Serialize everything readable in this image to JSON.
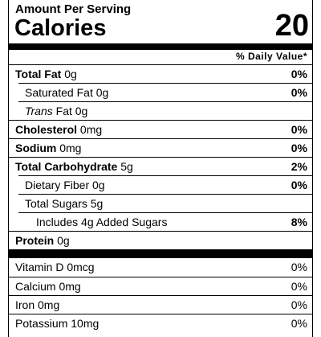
{
  "header": {
    "serving": "Amount Per Serving",
    "calories_label": "Calories",
    "calories_value": "20",
    "daily_value": "% Daily Value*"
  },
  "rows": [
    {
      "name": "Total Fat",
      "amount": "0g",
      "dv": "0%"
    },
    {
      "name": "Saturated Fat 0g",
      "dv": "0%"
    },
    {
      "prefix": "Trans",
      "name": "Fat 0g"
    },
    {
      "name": "Cholesterol",
      "amount": "0mg",
      "dv": "0%"
    },
    {
      "name": "Sodium",
      "amount": "0mg",
      "dv": "0%"
    },
    {
      "name": "Total Carbohydrate",
      "amount": "5g",
      "dv": "2%"
    },
    {
      "name": "Dietary Fiber 0g",
      "dv": "0%"
    },
    {
      "name": "Total Sugars 5g"
    },
    {
      "name": "Includes 4g Added Sugars",
      "dv": "8%"
    },
    {
      "name": "Protein",
      "amount": "0g"
    }
  ],
  "vitamins": [
    {
      "name": "Vitamin D 0mcg",
      "dv": "0%"
    },
    {
      "name": "Calcium 0mg",
      "dv": "0%"
    },
    {
      "name": "Iron 0mg",
      "dv": "0%"
    },
    {
      "name": "Potassium 10mg",
      "dv": "0%"
    }
  ]
}
